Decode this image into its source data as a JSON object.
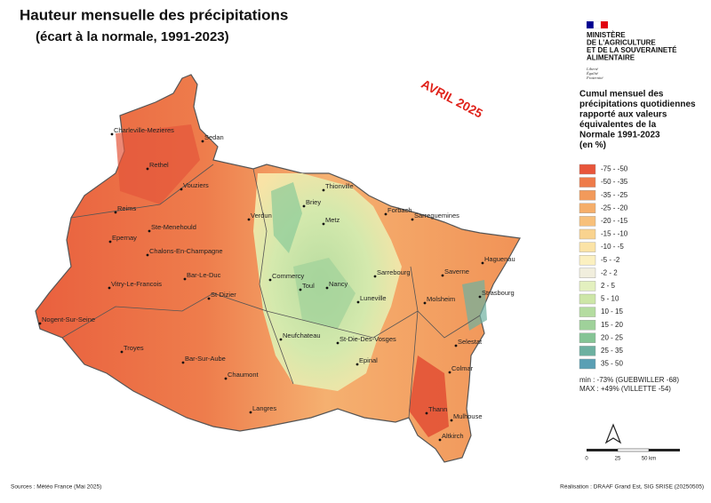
{
  "header": {
    "title": "Hauteur mensuelle des précipitations",
    "subtitle": "(écart à la normale, 1991-2023)"
  },
  "stamp": "AVRIL 2025",
  "ministry": {
    "lines": [
      "MINISTÈRE",
      "DE L'AGRICULTURE",
      "ET DE LA SOUVERAINETÉ",
      "ALIMENTAIRE"
    ],
    "motto": [
      "Liberté",
      "Égalité",
      "Fraternité"
    ]
  },
  "legend": {
    "title": [
      "Cumul mensuel des",
      "précipitations quotidiennes",
      "rapporté aux valeurs",
      "équivalentes de la",
      "Normale 1991-2023",
      "(en %)"
    ],
    "classes": [
      {
        "label": "-75 - -50",
        "color": "#e8553a"
      },
      {
        "label": "-50 - -35",
        "color": "#ee7b4a"
      },
      {
        "label": "-35 - -25",
        "color": "#f29a5b"
      },
      {
        "label": "-25 - -20",
        "color": "#f5ae6a"
      },
      {
        "label": "-20 - -15",
        "color": "#f7c07b"
      },
      {
        "label": "-15 - -10",
        "color": "#f9d38f"
      },
      {
        "label": "-10 - -5",
        "color": "#fbe3a6"
      },
      {
        "label": "-5 - -2",
        "color": "#fbf0c0"
      },
      {
        "label": "-2 - 2",
        "color": "#f1eedd"
      },
      {
        "label": "2 - 5",
        "color": "#e3f0bf"
      },
      {
        "label": "5 - 10",
        "color": "#cde6a7"
      },
      {
        "label": "10 - 15",
        "color": "#b4dca0"
      },
      {
        "label": "15 - 20",
        "color": "#9fd19a"
      },
      {
        "label": "20 - 25",
        "color": "#85c495"
      },
      {
        "label": "25 - 35",
        "color": "#6db0a0"
      },
      {
        "label": "35 - 50",
        "color": "#5a9fb4"
      }
    ],
    "min": "min : -73% (GUEBWILLER -68)",
    "max": "MAX : +49% (VILLETTE -54)"
  },
  "scale": [
    "0",
    "25",
    "50 km"
  ],
  "towns": [
    "Charleville-Mezieres",
    "Sedan",
    "Rethel",
    "Vouziers",
    "Reims",
    "Ste-Menehould",
    "Epernay",
    "Chalons-En-Champagne",
    "Verdun",
    "Briey",
    "Thionville",
    "Metz",
    "Forbach",
    "Sarreguemines",
    "Haguenau",
    "Bar-Le-Duc",
    "Commercy",
    "Toul",
    "Nancy",
    "Sarrebourg",
    "Saverne",
    "Vitry-Le-Francois",
    "St-Dizier",
    "Luneville",
    "Molsheim",
    "Strasbourg",
    "Nogent-Sur-Seine",
    "Neufchateau",
    "St-Die-Des-Vosges",
    "Selestat",
    "Troyes",
    "Bar-Sur-Aube",
    "Epinal",
    "Colmar",
    "Chaumont",
    "Thann",
    "Mulhouse",
    "Langres",
    "Altkirch"
  ],
  "footer": {
    "sources": "Sources : Météo France (Mai 2025)",
    "credit": "Réalisation : DRAAF Grand Est, SIG SRISE (20250505)"
  }
}
